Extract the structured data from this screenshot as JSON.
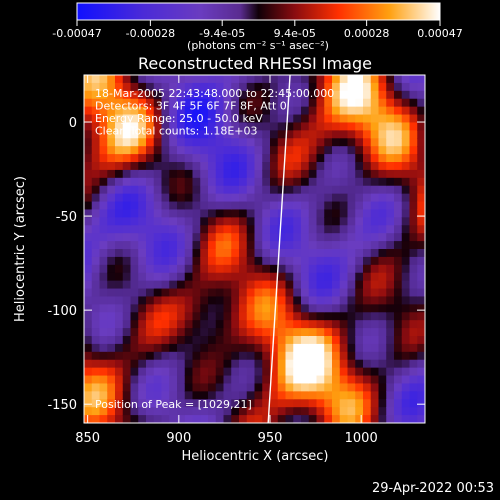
{
  "chart_data": {
    "type": "heatmap",
    "title": "Reconstructed RHESSI Image",
    "xlabel": "Heliocentric X (arcsec)",
    "ylabel": "Heliocentric Y (arcsec)",
    "xlim": [
      848,
      1035
    ],
    "ylim": [
      -160,
      25
    ],
    "x_ticks": [
      850,
      900,
      950,
      1000
    ],
    "y_ticks": [
      0,
      -50,
      -100,
      -150
    ],
    "colorbar": {
      "range": [
        -0.00047,
        0.00047
      ],
      "tick_values": [
        -0.00047,
        -0.00028,
        -9.4e-05,
        9.4e-05,
        0.00028,
        0.00047
      ],
      "tick_labels": [
        "-0.00047",
        "-0.00028",
        "-9.4e-05",
        "9.4e-05",
        "0.00028",
        "0.00047"
      ],
      "label": "(photons cm⁻² s⁻¹ asec⁻²)"
    },
    "annotations": [
      "18-Mar-2005 22:43:48.000 to 22:45:00.000",
      "Detectors: 3F 4F 5F 6F 7F 8F, Att 0",
      "Energy Range: 25.0 - 50.0 keV",
      "Clean    Total counts: 1.18E+03"
    ],
    "peak_label": "Position of Peak = [1029,21]",
    "peak_position": [
      1029,
      21
    ],
    "limb_x": [
      949,
      961
    ],
    "grid": false
  },
  "footer": {
    "date": "29-Apr-2022 00:53"
  },
  "colors": {
    "background": "#000000",
    "text": "#ffffff",
    "limb": "#ffffff"
  }
}
